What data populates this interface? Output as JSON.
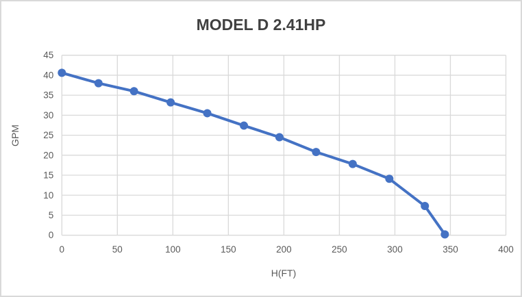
{
  "chart_data": {
    "type": "line",
    "title": "MODEL D 2.41HP",
    "xlabel": "H(FT)",
    "ylabel": "GPM",
    "x": [
      0,
      33,
      65,
      98,
      131,
      164,
      196,
      229,
      262,
      295,
      327,
      345
    ],
    "y": [
      40.6,
      38.0,
      36.0,
      33.2,
      30.5,
      27.4,
      24.5,
      20.8,
      17.8,
      14.1,
      7.3,
      0.2
    ],
    "xlim": [
      0,
      400
    ],
    "ylim": [
      0,
      45
    ],
    "xticks": [
      0,
      50,
      100,
      150,
      200,
      250,
      300,
      350,
      400
    ],
    "yticks": [
      0,
      5,
      10,
      15,
      20,
      25,
      30,
      35,
      40,
      45
    ],
    "grid": true,
    "legend": false,
    "marker": "circle",
    "colors": {
      "series": "#4472C4",
      "gridline": "#d9d9d9",
      "axis_line": "#d9d9d9",
      "tick_label": "#595959",
      "axis_title": "#595959",
      "title": "#404040",
      "frame_border": "#d9d9d9",
      "background": "#ffffff"
    }
  }
}
